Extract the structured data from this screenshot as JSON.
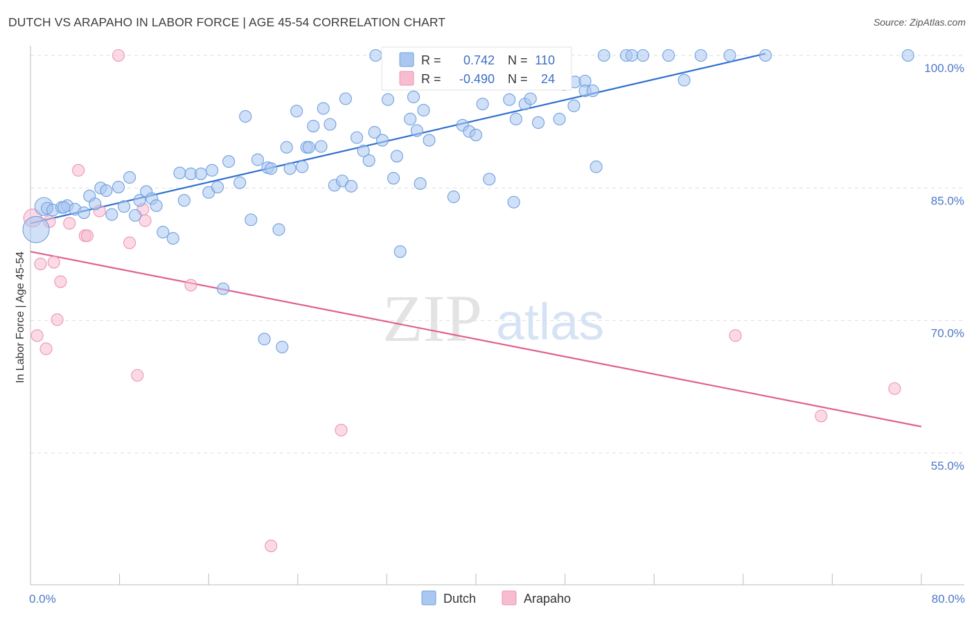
{
  "title": "DUTCH VS ARAPAHO IN LABOR FORCE | AGE 45-54 CORRELATION CHART",
  "source": "Source: ZipAtlas.com",
  "colors": {
    "dutch_fill": "#a9c7f0",
    "dutch_stroke": "#6f9fe0",
    "dutch_line": "#2f6fd0",
    "arapaho_fill": "#f7bcd0",
    "arapaho_stroke": "#ee93b2",
    "arapaho_line": "#e0608e",
    "axis_text": "#4a78c8",
    "grid": "#dddddd"
  },
  "legend": {
    "dutch": {
      "r_label": "R =",
      "r_value": "0.742",
      "n_label": "N =",
      "n_value": "110"
    },
    "arapaho": {
      "r_label": "R =",
      "r_value": "-0.490",
      "n_label": "N =",
      "n_value": "24"
    }
  },
  "bottom_legend": {
    "dutch": "Dutch",
    "arapaho": "Arapaho"
  },
  "watermark": {
    "zip": "ZIP",
    "atlas": "atlas"
  },
  "chart_data": {
    "type": "scatter",
    "title": "DUTCH VS ARAPAHO IN LABOR FORCE | AGE 45-54 CORRELATION CHART",
    "xlabel": "",
    "ylabel": "In Labor Force | Age 45-54",
    "xlim": [
      0,
      80
    ],
    "ylim": [
      38.5,
      101
    ],
    "x_tick_labels": [
      {
        "value": 0,
        "label": "0.0%"
      },
      {
        "value": 80,
        "label": "80.0%"
      }
    ],
    "y_tick_labels": [
      {
        "value": 100,
        "label": "100.0%"
      },
      {
        "value": 85,
        "label": "85.0%"
      },
      {
        "value": 70,
        "label": "70.0%"
      },
      {
        "value": 55,
        "label": "55.0%"
      }
    ],
    "grid": true,
    "legend_position": "top-center",
    "series": [
      {
        "name": "Dutch",
        "r": 0.742,
        "n": 110,
        "trend": {
          "x": [
            0.0,
            66.0
          ],
          "y": [
            81.0,
            100.2
          ]
        },
        "points": [
          [
            0.5,
            80.3,
            "l"
          ],
          [
            1.2,
            82.9,
            "m"
          ],
          [
            1.5,
            82.7
          ],
          [
            2.0,
            82.5
          ],
          [
            2.8,
            82.8
          ],
          [
            3.3,
            83.0
          ],
          [
            4.0,
            82.6
          ],
          [
            4.8,
            82.2
          ],
          [
            5.3,
            84.1
          ],
          [
            5.8,
            83.2
          ],
          [
            6.3,
            85.0
          ],
          [
            6.8,
            84.7
          ],
          [
            7.3,
            82.0
          ],
          [
            7.9,
            85.1
          ],
          [
            8.4,
            82.9
          ],
          [
            8.9,
            86.2
          ],
          [
            9.4,
            81.9
          ],
          [
            9.8,
            83.6
          ],
          [
            10.4,
            84.6
          ],
          [
            10.9,
            83.8
          ],
          [
            11.3,
            83.0
          ],
          [
            11.9,
            80.0
          ],
          [
            12.8,
            79.3
          ],
          [
            13.8,
            83.6
          ],
          [
            13.4,
            86.7
          ],
          [
            14.4,
            86.6
          ],
          [
            15.3,
            86.6
          ],
          [
            16.0,
            84.5
          ],
          [
            16.3,
            87.0
          ],
          [
            16.8,
            85.1
          ],
          [
            17.3,
            73.6
          ],
          [
            17.8,
            88.0
          ],
          [
            18.8,
            85.6
          ],
          [
            19.3,
            93.1
          ],
          [
            19.8,
            81.4
          ],
          [
            20.4,
            88.2
          ],
          [
            21.0,
            67.9
          ],
          [
            21.3,
            87.3
          ],
          [
            21.6,
            87.2
          ],
          [
            22.3,
            80.3
          ],
          [
            22.6,
            67.0
          ],
          [
            23.0,
            89.6
          ],
          [
            23.3,
            87.2
          ],
          [
            23.9,
            93.7
          ],
          [
            24.4,
            87.4
          ],
          [
            24.8,
            89.6
          ],
          [
            25.0,
            89.6
          ],
          [
            25.4,
            92.0
          ],
          [
            26.1,
            89.7
          ],
          [
            26.3,
            94.0
          ],
          [
            26.9,
            92.2
          ],
          [
            27.3,
            85.3
          ],
          [
            28.0,
            85.8
          ],
          [
            28.3,
            95.1
          ],
          [
            28.8,
            85.2
          ],
          [
            29.3,
            90.7
          ],
          [
            29.9,
            89.2
          ],
          [
            30.4,
            88.1
          ],
          [
            30.9,
            91.3
          ],
          [
            31.0,
            100.0
          ],
          [
            31.6,
            90.4
          ],
          [
            32.1,
            95.0
          ],
          [
            32.6,
            86.1
          ],
          [
            32.9,
            88.6
          ],
          [
            33.2,
            77.8
          ],
          [
            34.1,
            92.8
          ],
          [
            34.4,
            95.3
          ],
          [
            34.7,
            91.5
          ],
          [
            35.0,
            85.5
          ],
          [
            35.3,
            93.8
          ],
          [
            35.8,
            90.4
          ],
          [
            36.9,
            100.0
          ],
          [
            37.4,
            99.1
          ],
          [
            38.0,
            84.0
          ],
          [
            38.8,
            92.1
          ],
          [
            39.4,
            91.4
          ],
          [
            40.0,
            91.0
          ],
          [
            40.6,
            94.5
          ],
          [
            41.2,
            86.0
          ],
          [
            41.9,
            99.1
          ],
          [
            43.0,
            95.0
          ],
          [
            43.4,
            83.4
          ],
          [
            43.6,
            92.8
          ],
          [
            44.4,
            94.5
          ],
          [
            44.9,
            95.1
          ],
          [
            45.0,
            99.0
          ],
          [
            45.6,
            92.4
          ],
          [
            46.0,
            97.0
          ],
          [
            46.5,
            96.8
          ],
          [
            47.5,
            92.8
          ],
          [
            47.9,
            96.7
          ],
          [
            48.8,
            94.3
          ],
          [
            48.9,
            97.0
          ],
          [
            49.8,
            97.1
          ],
          [
            49.8,
            96.0
          ],
          [
            50.5,
            96.0
          ],
          [
            50.8,
            87.4
          ],
          [
            51.5,
            100.0
          ],
          [
            53.5,
            100.0
          ],
          [
            54.0,
            100.0
          ],
          [
            55.0,
            100.0
          ],
          [
            57.3,
            100.0
          ],
          [
            58.7,
            97.2
          ],
          [
            60.2,
            100.0
          ],
          [
            62.8,
            100.0
          ],
          [
            66.0,
            100.0
          ],
          [
            78.8,
            100.0
          ],
          [
            3.0,
            82.8
          ]
        ]
      },
      {
        "name": "Arapaho",
        "r": -0.49,
        "n": 24,
        "trend": {
          "x": [
            0.0,
            80.0
          ],
          "y": [
            77.8,
            58.0
          ]
        },
        "points": [
          [
            0.2,
            81.6,
            "m"
          ],
          [
            0.6,
            68.3
          ],
          [
            0.9,
            76.4
          ],
          [
            1.4,
            66.8
          ],
          [
            1.7,
            81.2
          ],
          [
            2.1,
            76.6
          ],
          [
            2.4,
            70.1
          ],
          [
            2.7,
            74.4
          ],
          [
            3.5,
            81.0
          ],
          [
            4.3,
            87.0
          ],
          [
            4.9,
            79.6
          ],
          [
            5.1,
            79.6
          ],
          [
            6.2,
            82.4
          ],
          [
            7.9,
            100.0
          ],
          [
            8.9,
            78.8
          ],
          [
            9.6,
            63.8
          ],
          [
            10.1,
            82.6
          ],
          [
            10.3,
            81.3
          ],
          [
            14.4,
            74.0
          ],
          [
            21.6,
            44.5
          ],
          [
            27.9,
            57.6
          ],
          [
            63.3,
            68.3
          ],
          [
            71.0,
            59.2
          ],
          [
            77.6,
            62.3
          ]
        ]
      }
    ]
  }
}
